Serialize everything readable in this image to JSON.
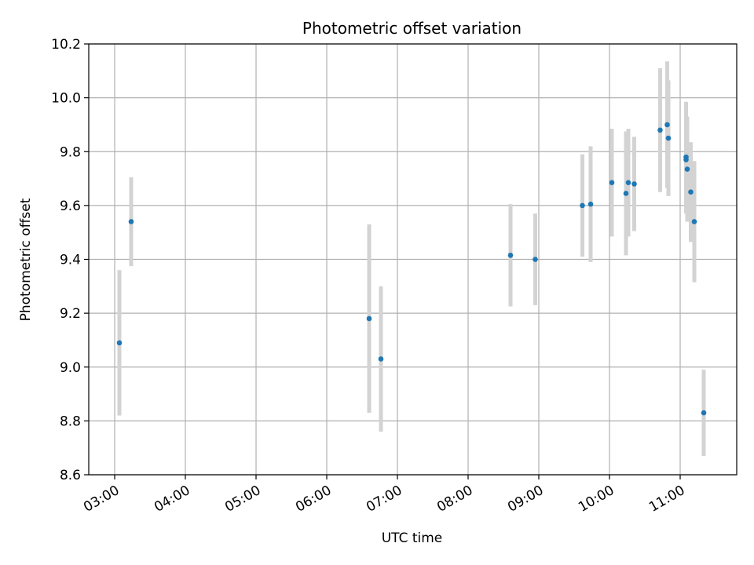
{
  "chart_data": {
    "type": "scatter",
    "title": "Photometric offset variation",
    "xlabel": "UTC time",
    "ylabel": "Photometric offset",
    "xlim": [
      "02:38",
      "11:48"
    ],
    "ylim": [
      8.6,
      10.2
    ],
    "x_ticks": [
      "03:00",
      "04:00",
      "05:00",
      "06:00",
      "07:00",
      "08:00",
      "09:00",
      "10:00",
      "11:00"
    ],
    "y_ticks": [
      8.6,
      8.8,
      9.0,
      9.2,
      9.4,
      9.6,
      9.8,
      10.0,
      10.2
    ],
    "grid": true,
    "errorbar_color": "#d3d3d3",
    "marker_color": "#1f77b4",
    "points": [
      {
        "x": "03:04",
        "y": 9.09,
        "yerr": 0.27
      },
      {
        "x": "03:14",
        "y": 9.54,
        "yerr": 0.165
      },
      {
        "x": "06:36",
        "y": 9.18,
        "yerr": 0.35
      },
      {
        "x": "06:46",
        "y": 9.03,
        "yerr": 0.27
      },
      {
        "x": "08:36",
        "y": 9.415,
        "yerr": 0.19
      },
      {
        "x": "08:57",
        "y": 9.4,
        "yerr": 0.17
      },
      {
        "x": "09:37",
        "y": 9.6,
        "yerr": 0.19
      },
      {
        "x": "09:44",
        "y": 9.605,
        "yerr": 0.215
      },
      {
        "x": "10:02",
        "y": 9.685,
        "yerr": 0.2
      },
      {
        "x": "10:14",
        "y": 9.645,
        "yerr": 0.23
      },
      {
        "x": "10:16",
        "y": 9.685,
        "yerr": 0.2
      },
      {
        "x": "10:21",
        "y": 9.68,
        "yerr": 0.175
      },
      {
        "x": "10:43",
        "y": 9.88,
        "yerr": 0.23
      },
      {
        "x": "10:49",
        "y": 9.9,
        "yerr": 0.235
      },
      {
        "x": "10:50",
        "y": 9.85,
        "yerr": 0.215
      },
      {
        "x": "11:05",
        "y": 9.78,
        "yerr": 0.205
      },
      {
        "x": "11:05",
        "y": 9.77,
        "yerr": 0.2
      },
      {
        "x": "11:06",
        "y": 9.735,
        "yerr": 0.195
      },
      {
        "x": "11:09",
        "y": 9.65,
        "yerr": 0.185
      },
      {
        "x": "11:12",
        "y": 9.54,
        "yerr": 0.225
      },
      {
        "x": "11:20",
        "y": 8.83,
        "yerr": 0.16
      }
    ]
  }
}
